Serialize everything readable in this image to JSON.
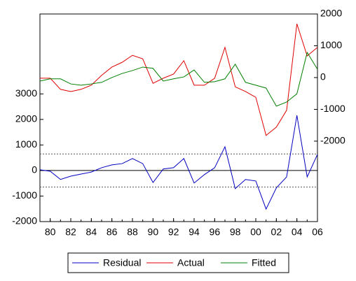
{
  "chart_data": {
    "type": "line",
    "x": [
      1979,
      1980,
      1981,
      1982,
      1983,
      1984,
      1985,
      1986,
      1987,
      1988,
      1989,
      1990,
      1991,
      1992,
      1993,
      1994,
      1995,
      1996,
      1997,
      1998,
      1999,
      2000,
      2001,
      2002,
      2003,
      2004,
      2005,
      2006
    ],
    "xlim": [
      1979,
      2006
    ],
    "xticks": [
      {
        "value": 1980,
        "label": "80"
      },
      {
        "value": 1982,
        "label": "82"
      },
      {
        "value": 1984,
        "label": "84"
      },
      {
        "value": 1986,
        "label": "86"
      },
      {
        "value": 1988,
        "label": "88"
      },
      {
        "value": 1990,
        "label": "90"
      },
      {
        "value": 1992,
        "label": "92"
      },
      {
        "value": 1994,
        "label": "94"
      },
      {
        "value": 1996,
        "label": "96"
      },
      {
        "value": 1998,
        "label": "98"
      },
      {
        "value": 2000,
        "label": "00"
      },
      {
        "value": 2002,
        "label": "02"
      },
      {
        "value": 2004,
        "label": "04"
      },
      {
        "value": 2006,
        "label": "06"
      }
    ],
    "ylim": [
      -2000,
      6130
    ],
    "yticks": [
      -2000,
      -1000,
      0,
      1000,
      2000,
      3000
    ],
    "y2lim": [
      -4530,
      2000
    ],
    "y2ticks": [
      -2000,
      -1000,
      0,
      1000,
      2000
    ],
    "bands": [
      -650,
      650
    ],
    "legend": "bottom",
    "series": [
      {
        "name": "Residual",
        "color": "#0000c0",
        "values": [
          30,
          -30,
          -350,
          -220,
          -140,
          -60,
          110,
          220,
          270,
          470,
          270,
          -470,
          60,
          110,
          470,
          -490,
          -160,
          110,
          930,
          -710,
          -350,
          -410,
          -1510,
          -680,
          -250,
          2160,
          -250,
          630
        ]
      },
      {
        "name": "Actual",
        "color": "#e00000",
        "axis": "y2",
        "values": [
          -20,
          -20,
          -370,
          -440,
          -370,
          -240,
          70,
          330,
          480,
          700,
          590,
          -180,
          -20,
          110,
          530,
          -240,
          -240,
          -20,
          950,
          -290,
          -440,
          -620,
          -1820,
          -1560,
          -1030,
          1690,
          680,
          950
        ]
      },
      {
        "name": "Fitted",
        "color": "#008000",
        "axis": "y2",
        "values": [
          -110,
          -40,
          -40,
          -200,
          -240,
          -200,
          -150,
          0,
          130,
          220,
          330,
          290,
          -110,
          -40,
          20,
          240,
          -150,
          -130,
          -40,
          420,
          -150,
          -240,
          -330,
          -900,
          -770,
          -510,
          790,
          260
        ]
      }
    ]
  }
}
